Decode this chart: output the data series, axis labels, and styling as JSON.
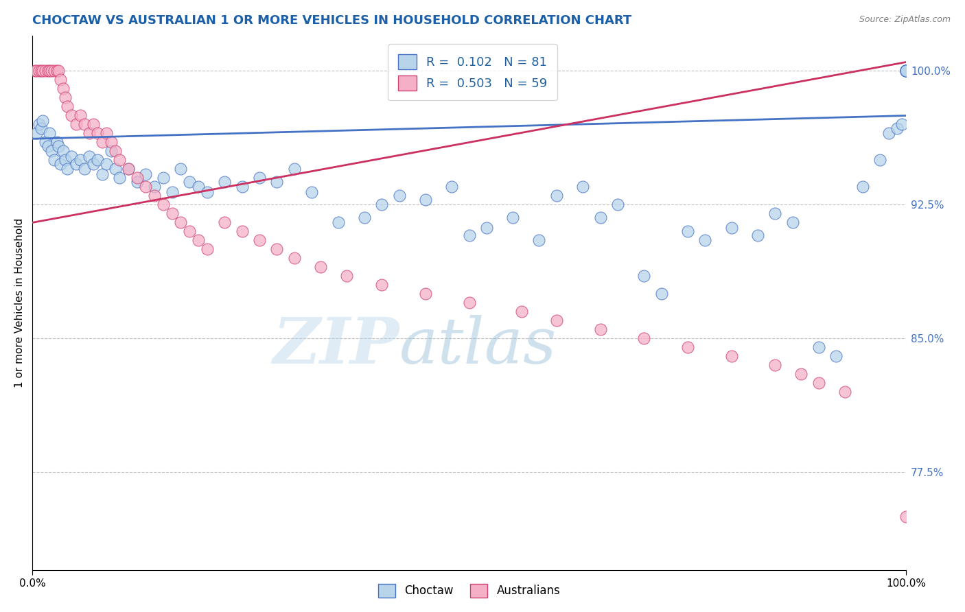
{
  "title": "CHOCTAW VS AUSTRALIAN 1 OR MORE VEHICLES IN HOUSEHOLD CORRELATION CHART",
  "source": "Source: ZipAtlas.com",
  "ylabel": "1 or more Vehicles in Household",
  "xlim": [
    0,
    100
  ],
  "ylim": [
    72,
    102
  ],
  "yticks": [
    77.5,
    85.0,
    92.5,
    100.0
  ],
  "watermark_zip": "ZIP",
  "watermark_atlas": "atlas",
  "legend_blue_r": "R =  0.102",
  "legend_blue_n": "N = 81",
  "legend_pink_r": "R =  0.503",
  "legend_pink_n": "N = 59",
  "blue_face": "#b8d4ea",
  "pink_face": "#f5b0c8",
  "blue_edge": "#4472c4",
  "pink_edge": "#d04070",
  "blue_trend": "#4472c4",
  "pink_trend": "#cc3060",
  "choctaw_x": [
    0.5,
    0.8,
    1.0,
    1.2,
    1.5,
    1.8,
    2.0,
    2.2,
    2.5,
    2.8,
    3.0,
    3.2,
    3.5,
    3.8,
    4.0,
    4.5,
    5.0,
    5.5,
    6.0,
    6.5,
    7.0,
    7.5,
    8.0,
    8.5,
    9.0,
    9.5,
    10.0,
    11.0,
    12.0,
    13.0,
    14.0,
    15.0,
    16.0,
    17.0,
    18.0,
    19.0,
    20.0,
    22.0,
    24.0,
    26.0,
    28.0,
    30.0,
    32.0,
    35.0,
    38.0,
    40.0,
    42.0,
    45.0,
    48.0,
    50.0,
    52.0,
    55.0,
    58.0,
    60.0,
    63.0,
    65.0,
    67.0,
    70.0,
    72.0,
    75.0,
    77.0,
    80.0,
    83.0,
    85.0,
    87.0,
    90.0,
    92.0,
    95.0,
    97.0,
    98.0,
    99.0,
    99.5,
    100.0,
    100.0,
    100.0,
    100.0,
    100.0,
    100.0,
    100.0,
    100.0,
    100.0
  ],
  "choctaw_y": [
    96.5,
    97.0,
    96.8,
    97.2,
    96.0,
    95.8,
    96.5,
    95.5,
    95.0,
    96.0,
    95.8,
    94.8,
    95.5,
    95.0,
    94.5,
    95.2,
    94.8,
    95.0,
    94.5,
    95.2,
    94.8,
    95.0,
    94.2,
    94.8,
    95.5,
    94.5,
    94.0,
    94.5,
    93.8,
    94.2,
    93.5,
    94.0,
    93.2,
    94.5,
    93.8,
    93.5,
    93.2,
    93.8,
    93.5,
    94.0,
    93.8,
    94.5,
    93.2,
    91.5,
    91.8,
    92.5,
    93.0,
    92.8,
    93.5,
    90.8,
    91.2,
    91.8,
    90.5,
    93.0,
    93.5,
    91.8,
    92.5,
    88.5,
    87.5,
    91.0,
    90.5,
    91.2,
    90.8,
    92.0,
    91.5,
    84.5,
    84.0,
    93.5,
    95.0,
    96.5,
    96.8,
    97.0,
    100.0,
    100.0,
    100.0,
    100.0,
    100.0,
    100.0,
    100.0,
    100.0,
    100.0
  ],
  "aus_x": [
    0.3,
    0.5,
    0.8,
    1.0,
    1.2,
    1.5,
    1.8,
    2.0,
    2.2,
    2.5,
    2.8,
    3.0,
    3.2,
    3.5,
    3.8,
    4.0,
    4.5,
    5.0,
    5.5,
    6.0,
    6.5,
    7.0,
    7.5,
    8.0,
    8.5,
    9.0,
    9.5,
    10.0,
    11.0,
    12.0,
    13.0,
    14.0,
    15.0,
    16.0,
    17.0,
    18.0,
    19.0,
    20.0,
    22.0,
    24.0,
    26.0,
    28.0,
    30.0,
    33.0,
    36.0,
    40.0,
    45.0,
    50.0,
    56.0,
    60.0,
    65.0,
    70.0,
    75.0,
    80.0,
    85.0,
    88.0,
    90.0,
    93.0,
    100.0
  ],
  "aus_y": [
    100.0,
    100.0,
    100.0,
    100.0,
    100.0,
    100.0,
    100.0,
    100.0,
    100.0,
    100.0,
    100.0,
    100.0,
    99.5,
    99.0,
    98.5,
    98.0,
    97.5,
    97.0,
    97.5,
    97.0,
    96.5,
    97.0,
    96.5,
    96.0,
    96.5,
    96.0,
    95.5,
    95.0,
    94.5,
    94.0,
    93.5,
    93.0,
    92.5,
    92.0,
    91.5,
    91.0,
    90.5,
    90.0,
    91.5,
    91.0,
    90.5,
    90.0,
    89.5,
    89.0,
    88.5,
    88.0,
    87.5,
    87.0,
    86.5,
    86.0,
    85.5,
    85.0,
    84.5,
    84.0,
    83.5,
    83.0,
    82.5,
    82.0,
    75.0
  ]
}
